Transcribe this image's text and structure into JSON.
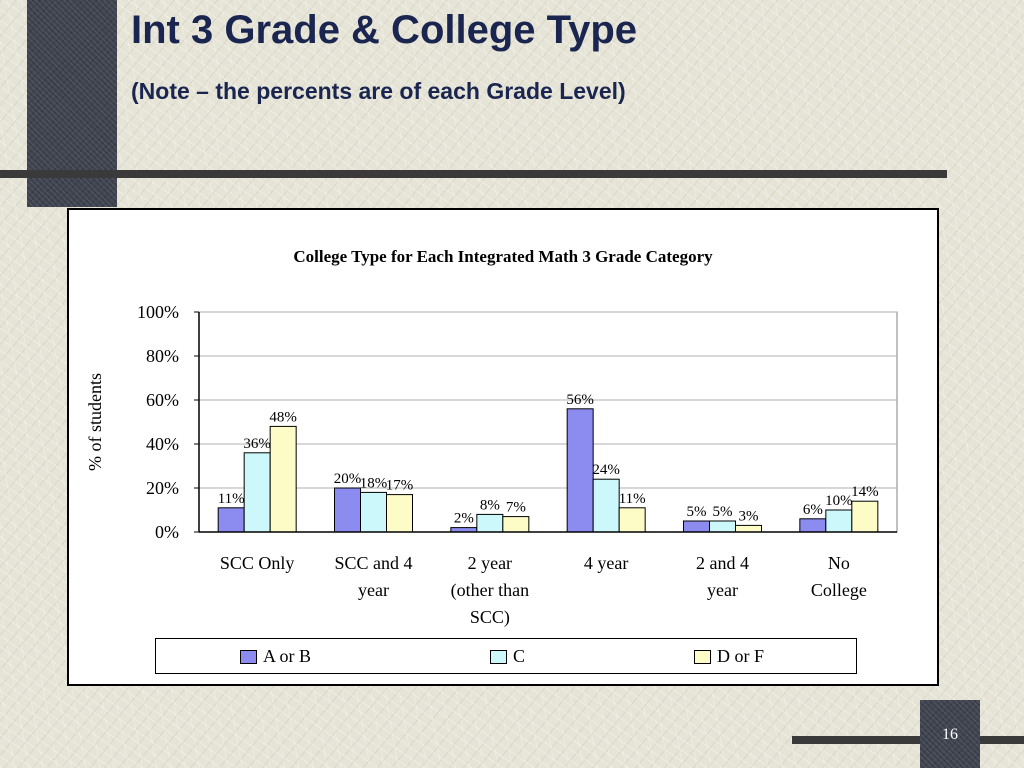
{
  "slide": {
    "title": "Int 3 Grade & College Type",
    "subtitle": "(Note – the percents are of each Grade Level)",
    "page_number": "16"
  },
  "colors": {
    "accent_dark": "#3f4450",
    "title_text": "#1a2650"
  },
  "chart_data": {
    "type": "bar",
    "title": "College Type for Each Integrated Math 3 Grade Category",
    "xlabel": "",
    "ylabel": "% of students",
    "ylim": [
      0,
      100
    ],
    "y_ticks": [
      "0%",
      "20%",
      "40%",
      "60%",
      "80%",
      "100%"
    ],
    "grid": true,
    "legend_position": "bottom",
    "categories": [
      [
        "SCC Only"
      ],
      [
        "SCC and 4",
        "year"
      ],
      [
        "2 year",
        "(other than",
        "SCC)"
      ],
      [
        "4 year"
      ],
      [
        "2 and  4",
        "year"
      ],
      [
        "No",
        "College"
      ]
    ],
    "series": [
      {
        "name": "A or B",
        "color": "#8b8bf0",
        "values": [
          11,
          20,
          2,
          56,
          5,
          6
        ],
        "labels": [
          "11%",
          "20%",
          "2%",
          "56%",
          "5%",
          "6%"
        ]
      },
      {
        "name": "C",
        "color": "#ccf8fc",
        "values": [
          36,
          18,
          8,
          24,
          5,
          10
        ],
        "labels": [
          "36%",
          "18%",
          "8%",
          "24%",
          "5%",
          "10%"
        ]
      },
      {
        "name": "D or F",
        "color": "#fdfcc7",
        "values": [
          48,
          17,
          7,
          11,
          3,
          14
        ],
        "labels": [
          "48%",
          "17%",
          "7%",
          "11%",
          "3%",
          "14%"
        ]
      }
    ]
  }
}
